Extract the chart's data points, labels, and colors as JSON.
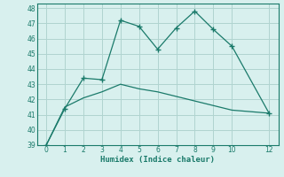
{
  "xlabel": "Humidex (Indice chaleur)",
  "line1_x": [
    0,
    1,
    2,
    3,
    4,
    5,
    6,
    7,
    8,
    9,
    10,
    12
  ],
  "line1_y": [
    39.0,
    41.4,
    43.4,
    43.3,
    47.2,
    46.8,
    45.3,
    46.7,
    47.8,
    46.6,
    45.5,
    41.1
  ],
  "line2_x": [
    0,
    1,
    2,
    3,
    4,
    5,
    6,
    7,
    8,
    9,
    10,
    12
  ],
  "line2_y": [
    39.0,
    41.5,
    42.1,
    42.5,
    43.0,
    42.7,
    42.5,
    42.2,
    41.9,
    41.6,
    41.3,
    41.1
  ],
  "line_color": "#1a7a6a",
  "bg_color": "#d8f0ee",
  "grid_color": "#b0d4d0",
  "ylim": [
    39,
    48
  ],
  "xlim": [
    -0.5,
    12.5
  ],
  "yticks": [
    39,
    40,
    41,
    42,
    43,
    44,
    45,
    46,
    47,
    48
  ],
  "xticks": [
    0,
    1,
    2,
    3,
    4,
    5,
    6,
    7,
    8,
    9,
    10,
    12
  ]
}
